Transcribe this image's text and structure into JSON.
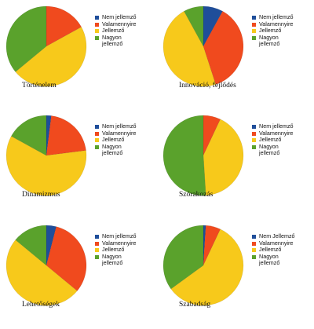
{
  "chart_data": [
    {
      "type": "pie",
      "title": "Történelem",
      "categories": [
        "Nem jellemző",
        "Valamennyire",
        "Jellemző",
        "Nagyon jellemző"
      ],
      "legend": [
        "Nem jellemző",
        "Valamennyire",
        "Jellemző",
        "Nagyon jellemző"
      ],
      "values": [
        0,
        17,
        47,
        36
      ]
    },
    {
      "type": "pie",
      "title": "Innováció, fejlődés",
      "categories": [
        "Nem jellemző",
        "Valamennyire",
        "Jellemző",
        "Nagyon jellemző"
      ],
      "legend": [
        "Nem jellemző",
        "Valamennyire",
        "Jellemző",
        "Nagyon jellemző"
      ],
      "values": [
        8,
        37,
        47,
        8
      ]
    },
    {
      "type": "pie",
      "title": "Dinamizmus",
      "categories": [
        "Nem jellemző",
        "Valamennyire",
        "Jellemző",
        "Nagyon jellemző"
      ],
      "legend": [
        "Nem jellemző",
        "Valamennyire",
        "Jellemző",
        "Nagyon jellemző"
      ],
      "values": [
        2,
        21,
        60,
        17
      ]
    },
    {
      "type": "pie",
      "title": "Szórakozás",
      "categories": [
        "Nem jellemző",
        "Valamennyire",
        "Jellemző",
        "Nagyon jellemző"
      ],
      "legend": [
        "Nem jellemző",
        "Valamennyire",
        "Jellemző",
        "Nagyon jellemző"
      ],
      "values": [
        0,
        7,
        42,
        51
      ]
    },
    {
      "type": "pie",
      "title": "Lehetőségek",
      "categories": [
        "Nem jellemző",
        "Valamennyire",
        "Jellemző",
        "Nagyon jellemző"
      ],
      "legend": [
        "Nem jellemző",
        "Valamennyire",
        "Jellemző",
        "Nagyon jellemző"
      ],
      "values": [
        4,
        32,
        50,
        14
      ]
    },
    {
      "type": "pie",
      "title": "Szabadság",
      "categories": [
        "Nem jellemző",
        "Valamennyire",
        "Jellemző",
        "Nagyon jellemző"
      ],
      "legend": [
        "Nem Jellemző",
        "Valamennyire",
        "Jellemző",
        "Nagyon jellemző"
      ],
      "values": [
        1,
        6,
        58,
        35
      ]
    }
  ],
  "colors": {
    "Nem jellemző": "#1f4e9a",
    "Valamennyire": "#f04a1e",
    "Jellemző": "#f7c91b",
    "Nagyon jellemző": "#5aa22c"
  },
  "series_colors": [
    "#1f4e9a",
    "#f04a1e",
    "#f7c91b",
    "#5aa22c"
  ]
}
